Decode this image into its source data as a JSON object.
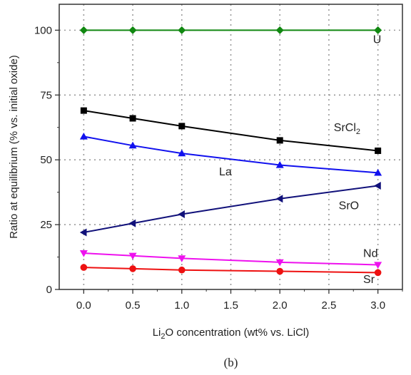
{
  "chart_data": {
    "type": "line",
    "x_title": {
      "pre": "Li",
      "sub": "2",
      "post": "O concentration (wt% vs. LiCl)"
    },
    "ylabel": "Ratio at equilibrium (% vs. initial oxide)",
    "caption": "(b)",
    "xlim": [
      -0.25,
      3.25
    ],
    "ylim": [
      0,
      110
    ],
    "x_ticks": [
      "0.0",
      "0.5",
      "1.0",
      "1.5",
      "2.0",
      "2.5",
      "3.0"
    ],
    "x_tick_values": [
      0,
      0.5,
      1.0,
      1.5,
      2.0,
      2.5,
      3.0
    ],
    "y_ticks": [
      "0",
      "25",
      "50",
      "75",
      "100"
    ],
    "y_tick_values": [
      0,
      25,
      50,
      75,
      100
    ],
    "grid": true,
    "x": [
      0,
      0.5,
      1.0,
      2.0,
      3.0
    ],
    "series": [
      {
        "name": "U",
        "label_pre": "U",
        "label_sub": "",
        "color": "#118811",
        "marker": "diamond",
        "values": [
          100,
          100,
          100,
          100,
          100
        ],
        "label_at": [
          2.95,
          95
        ]
      },
      {
        "name": "SrCl2",
        "label_pre": "SrCl",
        "label_sub": "2",
        "color": "#000000",
        "marker": "square",
        "values": [
          69,
          66,
          63,
          57.5,
          53.5
        ],
        "label_at": [
          2.55,
          61
        ]
      },
      {
        "name": "La",
        "label_pre": "La",
        "label_sub": "",
        "color": "#1111ee",
        "marker": "triangle-up",
        "values": [
          59,
          55.5,
          52.5,
          48,
          45
        ],
        "label_at": [
          1.38,
          44
        ]
      },
      {
        "name": "SrO",
        "label_pre": "SrO",
        "label_sub": "",
        "color": "#11117a",
        "marker": "triangle-left",
        "values": [
          22,
          25.5,
          29,
          35,
          40
        ],
        "label_at": [
          2.6,
          31
        ]
      },
      {
        "name": "Nd",
        "label_pre": "Nd",
        "label_sub": "",
        "color": "#ee11ee",
        "marker": "triangle-down",
        "values": [
          14,
          13,
          12,
          10.5,
          9.5
        ],
        "label_at": [
          2.85,
          12.5
        ]
      },
      {
        "name": "Sr",
        "label_pre": "Sr",
        "label_sub": "",
        "color": "#ee1111",
        "marker": "circle",
        "values": [
          8.5,
          8,
          7.5,
          7,
          6.5
        ],
        "label_at": [
          2.85,
          2.5
        ]
      }
    ]
  }
}
